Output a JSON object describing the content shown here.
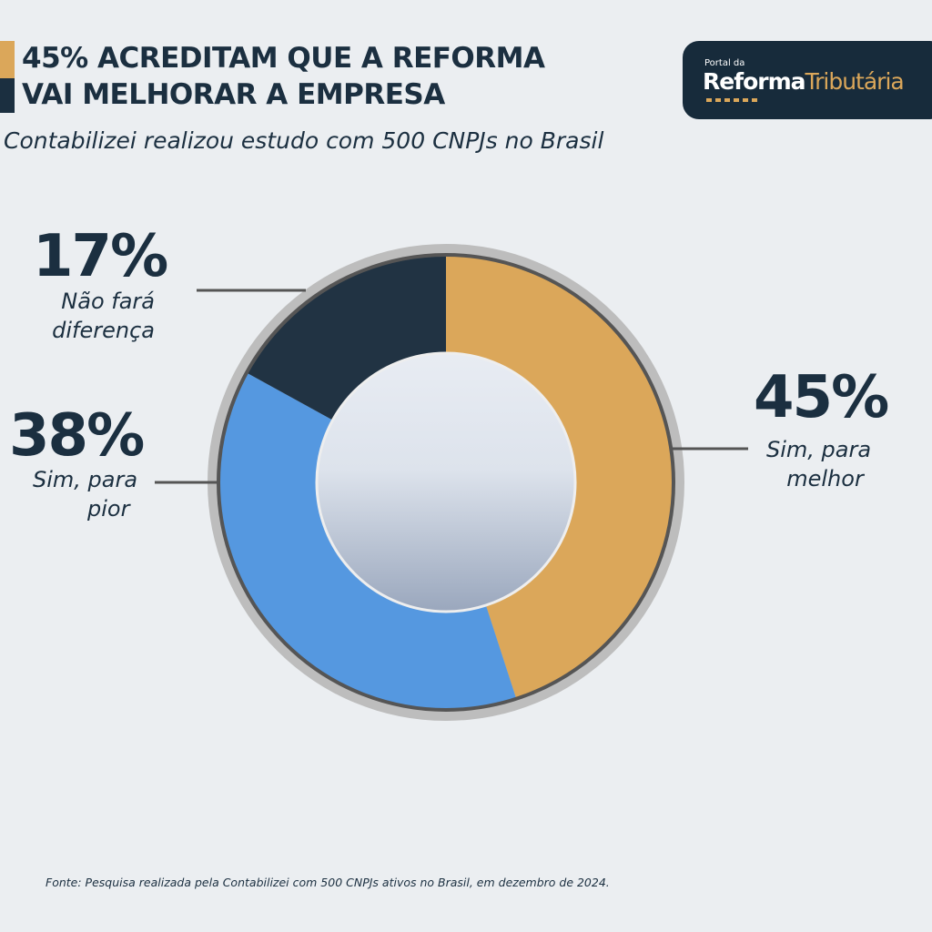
{
  "header": {
    "title_line1": "45% ACREDITAM QUE A REFORMA",
    "title_line2": "VAI MELHORAR A EMPRESA",
    "subtitle": "Contabilizei realizou estudo com 500 CNPJs no Brasil",
    "accent_colors": [
      "#DBA75A",
      "#1B2F40"
    ]
  },
  "logo": {
    "small": "Portal da",
    "word1": "Reforma",
    "word2": "Tributária"
  },
  "chart_data": {
    "type": "pie",
    "donut": true,
    "unit": "%",
    "slices": [
      {
        "label_line1": "Sim, para",
        "label_line2": "melhor",
        "value": 45,
        "value_label": "45%",
        "color": "#DBA75A"
      },
      {
        "label_line1": "Sim, para",
        "label_line2": "pior",
        "value": 38,
        "value_label": "38%",
        "color": "#5598E0"
      },
      {
        "label_line1": "Não fará",
        "label_line2": "diferença",
        "value": 17,
        "value_label": "17%",
        "color": "#213343"
      }
    ]
  },
  "footer": {
    "source": "Fonte: Pesquisa realizada pela Contabilizei com 500 CNPJs ativos no Brasil, em dezembro de 2024."
  }
}
